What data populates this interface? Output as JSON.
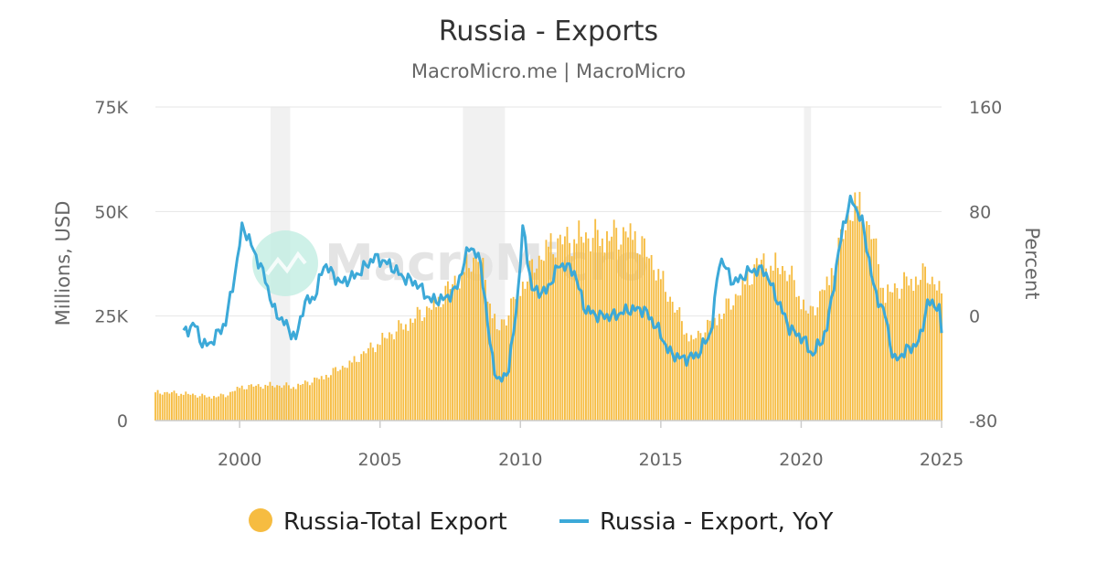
{
  "chart_data": {
    "type": "bar+line",
    "title": "Russia - Exports",
    "subtitle": "MacroMicro.me | MacroMicro",
    "watermark": "MacroMicro",
    "x_ticks": [
      "2000",
      "2005",
      "2010",
      "2015",
      "2020",
      "2025"
    ],
    "x_range": [
      1997.0,
      2025.0
    ],
    "y_left": {
      "label": "Millions, USD",
      "ticks": [
        "0",
        "25K",
        "50K",
        "75K"
      ],
      "range": [
        0,
        75000
      ]
    },
    "y_right": {
      "label": "Percent",
      "ticks": [
        "-80",
        "0",
        "80",
        "160"
      ],
      "range": [
        -80,
        160
      ]
    },
    "grid": true,
    "legend_position": "bottom",
    "colors": {
      "bars": "#f6bc41",
      "line": "#3ca9d8",
      "recession": "#f1f1f1",
      "watermark_logo": "#bdece0"
    },
    "recession_bands": [
      [
        2001.1,
        2001.8
      ],
      [
        2007.95,
        2009.45
      ],
      [
        2020.1,
        2020.35
      ]
    ],
    "series": [
      {
        "name": "Russia-Total Export",
        "kind": "bar",
        "axis": "left",
        "anchors": [
          [
            1997.0,
            6800
          ],
          [
            1998.0,
            6500
          ],
          [
            1998.9,
            5700
          ],
          [
            1999.5,
            6000
          ],
          [
            2000.0,
            8000
          ],
          [
            2001.0,
            8500
          ],
          [
            2002.0,
            8200
          ],
          [
            2003.0,
            10500
          ],
          [
            2004.0,
            14000
          ],
          [
            2005.0,
            19000
          ],
          [
            2006.0,
            23500
          ],
          [
            2007.0,
            28000
          ],
          [
            2008.5,
            40000
          ],
          [
            2009.2,
            21000
          ],
          [
            2010.0,
            32000
          ],
          [
            2011.0,
            42000
          ],
          [
            2012.0,
            44000
          ],
          [
            2013.0,
            44000
          ],
          [
            2014.0,
            45000
          ],
          [
            2014.8,
            37000
          ],
          [
            2015.5,
            27000
          ],
          [
            2016.1,
            19000
          ],
          [
            2016.6,
            22000
          ],
          [
            2017.5,
            28000
          ],
          [
            2018.5,
            38000
          ],
          [
            2019.5,
            36000
          ],
          [
            2020.3,
            25000
          ],
          [
            2021.0,
            34000
          ],
          [
            2021.9,
            53000
          ],
          [
            2022.5,
            45000
          ],
          [
            2023.0,
            30000
          ],
          [
            2023.7,
            33000
          ],
          [
            2024.5,
            35000
          ],
          [
            2025.0,
            31000
          ]
        ]
      },
      {
        "name": "Russia - Export, YoY",
        "kind": "line",
        "axis": "right",
        "anchors": [
          [
            1998.0,
            -13
          ],
          [
            1998.4,
            -6
          ],
          [
            1998.7,
            -23
          ],
          [
            1999.0,
            -20
          ],
          [
            1999.5,
            -5
          ],
          [
            1999.9,
            40
          ],
          [
            2000.1,
            70
          ],
          [
            2000.5,
            50
          ],
          [
            2000.9,
            30
          ],
          [
            2001.2,
            5
          ],
          [
            2001.7,
            -8
          ],
          [
            2002.0,
            -18
          ],
          [
            2002.3,
            10
          ],
          [
            2002.7,
            15
          ],
          [
            2003.0,
            40
          ],
          [
            2003.6,
            25
          ],
          [
            2004.2,
            32
          ],
          [
            2004.8,
            45
          ],
          [
            2005.3,
            40
          ],
          [
            2005.8,
            30
          ],
          [
            2006.3,
            25
          ],
          [
            2006.8,
            12
          ],
          [
            2007.3,
            13
          ],
          [
            2007.7,
            20
          ],
          [
            2008.2,
            55
          ],
          [
            2008.6,
            40
          ],
          [
            2008.9,
            -20
          ],
          [
            2009.2,
            -52
          ],
          [
            2009.6,
            -40
          ],
          [
            2009.9,
            15
          ],
          [
            2010.1,
            70
          ],
          [
            2010.4,
            20
          ],
          [
            2010.9,
            18
          ],
          [
            2011.4,
            40
          ],
          [
            2011.9,
            35
          ],
          [
            2012.3,
            5
          ],
          [
            2012.8,
            0
          ],
          [
            2013.3,
            0
          ],
          [
            2013.9,
            5
          ],
          [
            2014.4,
            5
          ],
          [
            2014.9,
            -10
          ],
          [
            2015.3,
            -28
          ],
          [
            2015.8,
            -33
          ],
          [
            2016.3,
            -30
          ],
          [
            2016.8,
            -12
          ],
          [
            2017.1,
            45
          ],
          [
            2017.6,
            25
          ],
          [
            2018.2,
            35
          ],
          [
            2018.7,
            35
          ],
          [
            2019.1,
            15
          ],
          [
            2019.6,
            -10
          ],
          [
            2020.1,
            -18
          ],
          [
            2020.4,
            -30
          ],
          [
            2020.9,
            -12
          ],
          [
            2021.2,
            30
          ],
          [
            2021.5,
            70
          ],
          [
            2021.8,
            90
          ],
          [
            2022.2,
            70
          ],
          [
            2022.6,
            20
          ],
          [
            2023.0,
            0
          ],
          [
            2023.3,
            -35
          ],
          [
            2023.7,
            -27
          ],
          [
            2024.2,
            -20
          ],
          [
            2024.5,
            10
          ],
          [
            2024.9,
            8
          ],
          [
            2025.0,
            -13
          ]
        ]
      }
    ]
  }
}
